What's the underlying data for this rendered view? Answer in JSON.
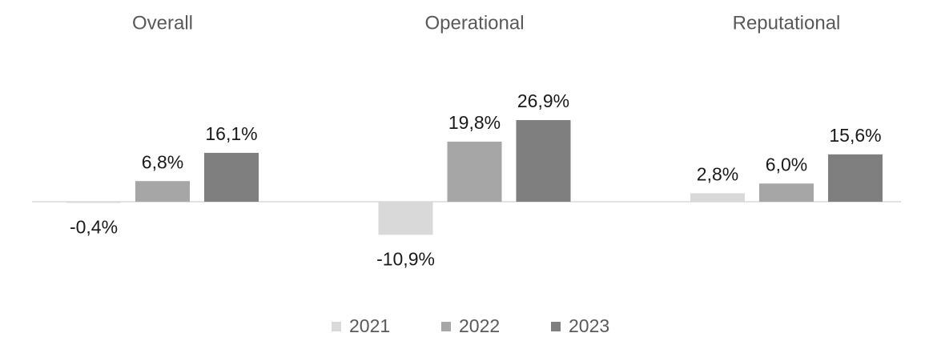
{
  "chart_data": {
    "type": "bar",
    "categories": [
      "Overall",
      "Operational",
      "Reputational"
    ],
    "series": [
      {
        "name": "2021",
        "color": "#d9d9d9",
        "values": [
          -0.4,
          -10.9,
          2.8
        ],
        "value_labels": [
          "-0,4%",
          "-10,9%",
          "2,8%"
        ]
      },
      {
        "name": "2022",
        "color": "#a6a6a6",
        "values": [
          6.8,
          19.8,
          6.0
        ],
        "value_labels": [
          "6,8%",
          "19,8%",
          "6,0%"
        ]
      },
      {
        "name": "2023",
        "color": "#7f7f7f",
        "values": [
          16.1,
          26.9,
          15.6
        ],
        "value_labels": [
          "16,1%",
          "26,9%",
          "15,6%"
        ]
      }
    ],
    "legend": "bottom"
  }
}
